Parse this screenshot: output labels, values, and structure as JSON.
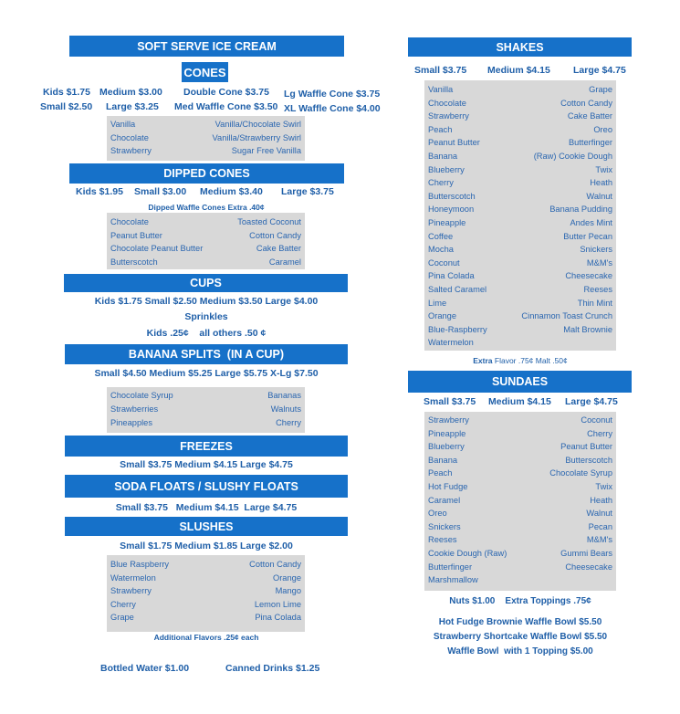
{
  "colors": {
    "header_bar": "#1671c9",
    "text": "#1f5fa8",
    "flavor_box": "#d8d8d8"
  },
  "soft_serve": {
    "title": "SOFT SERVE ICE CREAM"
  },
  "cones": {
    "title": "CONES",
    "prices": [
      "Kids $1.75",
      "Medium $3.00",
      "Double Cone $3.75",
      "Lg Waffle Cone $3.75",
      "Small $2.50",
      "Large $3.25",
      "Med Waffle Cone $3.50",
      "XL Waffle Cone $4.00"
    ],
    "flavors": [
      [
        "Vanilla",
        "Vanilla/Chocolate Swirl"
      ],
      [
        "Chocolate",
        "Vanilla/Strawberry Swirl"
      ],
      [
        "Strawberry",
        "Sugar Free Vanilla"
      ]
    ]
  },
  "dipped_cones": {
    "title": "DIPPED CONES",
    "prices": [
      "Kids $1.95",
      "Small $3.00",
      "Medium $3.40",
      "Large  $3.75"
    ],
    "note": "Dipped Waffle Cones Extra .40¢",
    "flavors": [
      [
        "Chocolate",
        "Toasted Coconut"
      ],
      [
        "Peanut Butter",
        "Cotton Candy"
      ],
      [
        "Chocolate Peanut Butter",
        "Cake Batter"
      ],
      [
        "Butterscotch",
        "Caramel"
      ]
    ]
  },
  "cups": {
    "title": "CUPS",
    "prices": "Kids $1.75  Small $2.50  Medium $3.50  Large $4.00",
    "sprinkles": "Sprinkles",
    "sprinkles_prices": "Kids .25¢    all others .50 ¢"
  },
  "banana_splits": {
    "title": "BANANA SPLITS  (IN A CUP)",
    "prices": "Small $4.50  Medium $5.25  Large $5.75 X-Lg $7.50",
    "toppings": [
      [
        "Chocolate Syrup",
        "Bananas"
      ],
      [
        "Strawberries",
        "Walnuts"
      ],
      [
        "Pineapples",
        "Cherry"
      ]
    ]
  },
  "freezes": {
    "title": "FREEZES",
    "prices": "Small $3.75  Medium $4.15  Large $4.75"
  },
  "floats": {
    "title": "SODA FLOATS / SLUSHY FLOATS",
    "prices": "Small $3.75   Medium $4.15  Large $4.75"
  },
  "slushes": {
    "title": "SLUSHES",
    "prices": "Small $1.75  Medium $1.85  Large $2.00",
    "flavors": [
      [
        "Blue Raspberry",
        "Cotton Candy"
      ],
      [
        "Watermelon",
        "Orange"
      ],
      [
        "Strawberry",
        "Mango"
      ],
      [
        "Cherry",
        "Lemon Lime"
      ],
      [
        "Grape",
        "Pina Colada"
      ]
    ],
    "note": "Additional Flavors .25¢ each"
  },
  "drinks": {
    "water": "Bottled Water $1.00",
    "canned": "Canned Drinks $1.25"
  },
  "shakes": {
    "title": "SHAKES",
    "prices": [
      "Small $3.75",
      "Medium $4.15",
      "Large $4.75"
    ],
    "flavors": [
      [
        "Vanilla",
        "Grape"
      ],
      [
        "Chocolate",
        "Cotton Candy"
      ],
      [
        "Strawberry",
        "Cake Batter"
      ],
      [
        "Peach",
        "Oreo"
      ],
      [
        "Peanut Butter",
        "Butterfinger"
      ],
      [
        "Banana",
        "(Raw) Cookie Dough"
      ],
      [
        "Blueberry",
        "Twix"
      ],
      [
        "Cherry",
        "Heath"
      ],
      [
        "Butterscotch",
        "Walnut"
      ],
      [
        "Honeymoon",
        "Banana Pudding"
      ],
      [
        "Pineapple",
        "Andes Mint"
      ],
      [
        "Coffee",
        "Butter Pecan"
      ],
      [
        "Mocha",
        "Snickers"
      ],
      [
        "Coconut",
        "M&M's"
      ],
      [
        "Pina Colada",
        "Cheesecake"
      ],
      [
        "Salted Caramel",
        "Reeses"
      ],
      [
        "Lime",
        "Thin Mint"
      ],
      [
        "Orange",
        "Cinnamon Toast Crunch"
      ],
      [
        "Blue-Raspberry",
        "Malt Brownie"
      ],
      [
        "Watermelon",
        ""
      ]
    ],
    "extra_label": "Extra",
    "extra": "Flavor  .75¢  Malt  .50¢"
  },
  "sundaes": {
    "title": "SUNDAES",
    "prices": [
      "Small $3.75",
      "Medium $4.15",
      "Large $4.75"
    ],
    "toppings": [
      [
        "Strawberry",
        "Coconut"
      ],
      [
        "Pineapple",
        "Cherry"
      ],
      [
        "Blueberry",
        "Peanut Butter"
      ],
      [
        "Banana",
        "Butterscotch"
      ],
      [
        "Peach",
        "Chocolate Syrup"
      ],
      [
        "Hot Fudge",
        "Twix"
      ],
      [
        "Caramel",
        "Heath"
      ],
      [
        "Oreo",
        "Walnut"
      ],
      [
        "Snickers",
        "Pecan"
      ],
      [
        "Reeses",
        "M&M's"
      ],
      [
        "Cookie Dough (Raw)",
        "Gummi Bears"
      ],
      [
        "Butterfinger",
        "Cheesecake"
      ],
      [
        "Marshmallow",
        ""
      ]
    ],
    "extras": "Nuts $1.00    Extra Toppings .75¢",
    "bowls": [
      "Hot Fudge Brownie Waffle Bowl $5.50",
      "Strawberry Shortcake Waffle Bowl $5.50",
      "Waffle Bowl  with 1 Topping $5.00"
    ]
  }
}
